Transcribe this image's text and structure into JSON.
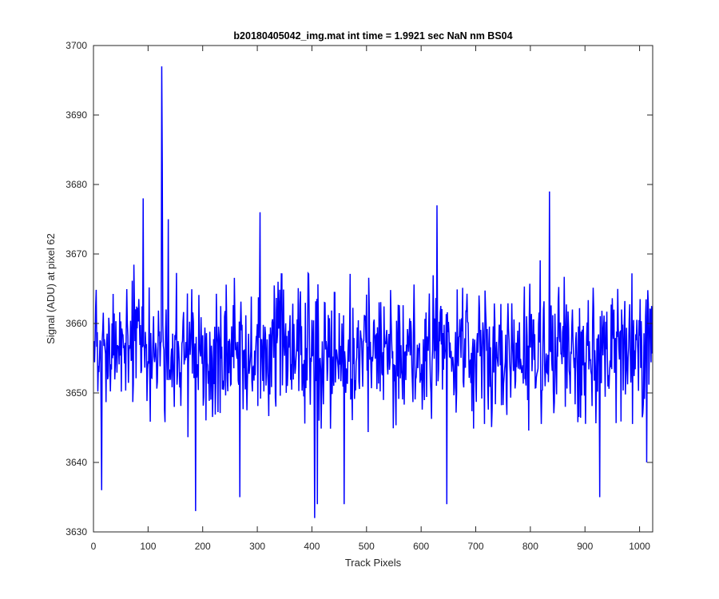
{
  "chart_data": {
    "type": "line",
    "title": "b20180405042_img.mat int time = 1.9921 sec  NaN nm BS04",
    "xlabel": "Track Pixels",
    "ylabel": "Signal (ADU) at pixel 62",
    "xlim": [
      0,
      1024
    ],
    "ylim": [
      3630,
      3700
    ],
    "x_ticks": [
      0,
      100,
      200,
      300,
      400,
      500,
      600,
      700,
      800,
      900,
      1000
    ],
    "y_ticks": [
      3630,
      3640,
      3650,
      3660,
      3670,
      3680,
      3690,
      3700
    ],
    "grid": false,
    "legend": "none",
    "series": [
      {
        "color": "#0000ff",
        "x_start": 1,
        "x_end": 1024,
        "mean": 3656,
        "noise_range": [
          3632,
          3697
        ],
        "notable_points": [
          {
            "x": 125,
            "y": 3697
          },
          {
            "x": 126,
            "y": 3683
          },
          {
            "x": 137,
            "y": 3675
          },
          {
            "x": 835,
            "y": 3679
          },
          {
            "x": 629,
            "y": 3677
          },
          {
            "x": 91,
            "y": 3678
          },
          {
            "x": 305,
            "y": 3676
          },
          {
            "x": 405,
            "y": 3632
          },
          {
            "x": 187,
            "y": 3633
          },
          {
            "x": 410,
            "y": 3634
          },
          {
            "x": 647,
            "y": 3634
          },
          {
            "x": 927,
            "y": 3635
          },
          {
            "x": 459,
            "y": 3634
          },
          {
            "x": 268,
            "y": 3635
          },
          {
            "x": 15,
            "y": 3636
          },
          {
            "x": 1013,
            "y": 3640
          }
        ]
      }
    ]
  }
}
